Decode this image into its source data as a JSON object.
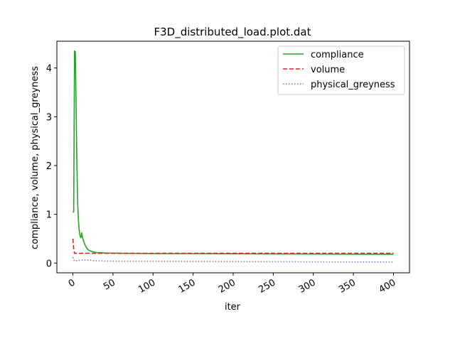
{
  "chart_data": {
    "type": "line",
    "title": "F3D_distributed_load.plot.dat",
    "xlabel": "iter",
    "ylabel": "compliance, volume, physical_greyness",
    "xlim": [
      -20,
      420
    ],
    "ylim": [
      -0.2,
      4.55
    ],
    "xticks": [
      0,
      50,
      100,
      150,
      200,
      250,
      300,
      350,
      400
    ],
    "yticks": [
      0,
      1,
      2,
      3,
      4
    ],
    "grid": false,
    "legend_position": "top-right",
    "series": [
      {
        "name": "compliance",
        "color": "#2ca02c",
        "style": "solid",
        "points": [
          [
            0,
            1.04
          ],
          [
            1,
            1.05
          ],
          [
            2,
            4.35
          ],
          [
            3,
            4.33
          ],
          [
            4,
            3.2
          ],
          [
            5,
            2.0
          ],
          [
            6,
            1.2
          ],
          [
            7,
            0.85
          ],
          [
            8,
            0.65
          ],
          [
            9,
            0.55
          ],
          [
            10,
            0.52
          ],
          [
            11,
            0.62
          ],
          [
            12,
            0.52
          ],
          [
            14,
            0.42
          ],
          [
            16,
            0.34
          ],
          [
            18,
            0.29
          ],
          [
            20,
            0.26
          ],
          [
            25,
            0.23
          ],
          [
            30,
            0.215
          ],
          [
            40,
            0.205
          ],
          [
            60,
            0.2
          ],
          [
            100,
            0.195
          ],
          [
            200,
            0.19
          ],
          [
            300,
            0.185
          ],
          [
            400,
            0.18
          ]
        ]
      },
      {
        "name": "volume",
        "color": "#d62728",
        "style": "dashed",
        "points": [
          [
            0,
            0.5
          ],
          [
            1,
            0.3
          ],
          [
            2,
            0.2
          ],
          [
            5,
            0.2
          ],
          [
            50,
            0.2
          ],
          [
            100,
            0.2
          ],
          [
            200,
            0.2
          ],
          [
            300,
            0.2
          ],
          [
            400,
            0.2
          ]
        ]
      },
      {
        "name": "physical_greyness",
        "color": "#9467bd",
        "style": "dotted",
        "points": [
          [
            0,
            0.12
          ],
          [
            1,
            0.07
          ],
          [
            2,
            0.04
          ],
          [
            5,
            0.05
          ],
          [
            10,
            0.06
          ],
          [
            20,
            0.06
          ],
          [
            30,
            0.045
          ],
          [
            40,
            0.04
          ],
          [
            60,
            0.035
          ],
          [
            100,
            0.035
          ],
          [
            200,
            0.03
          ],
          [
            300,
            0.025
          ],
          [
            400,
            0.02
          ]
        ]
      }
    ]
  }
}
